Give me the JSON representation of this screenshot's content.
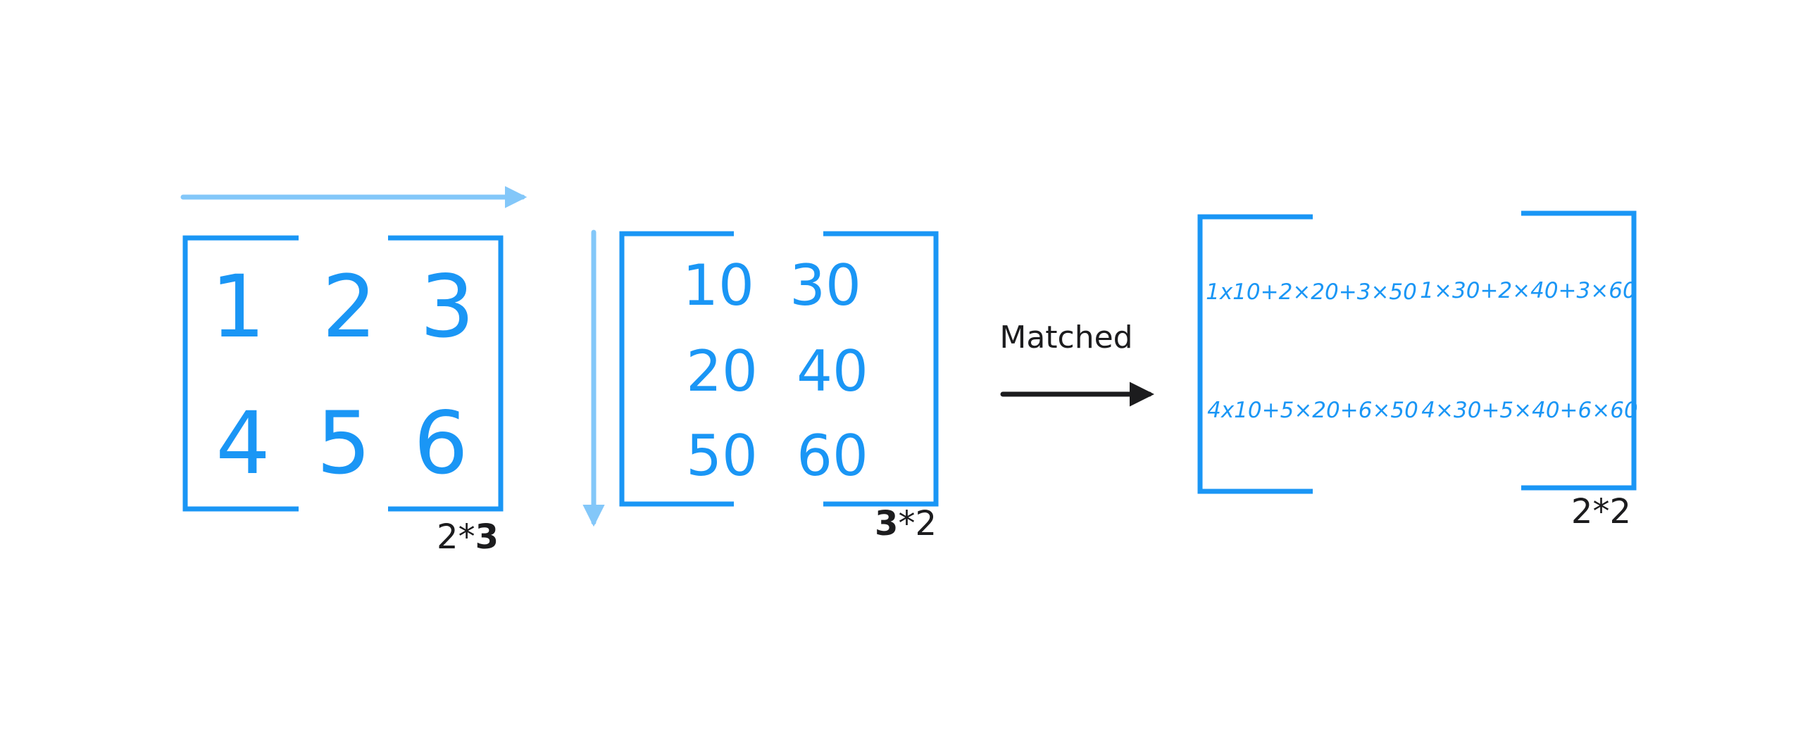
{
  "colors": {
    "bracket": "#1a96f5",
    "number": "#1a96f5",
    "guide_arrow": "#83c7f9",
    "arrow": "#1c1c1e",
    "text": "#1c1c1e"
  },
  "matrix_a": {
    "cells": [
      "1",
      "2",
      "3",
      "4",
      "5",
      "6"
    ],
    "dim_rows": "2",
    "dim_sep": "*",
    "dim_cols": "3"
  },
  "matrix_b": {
    "cells": [
      "10",
      "30",
      "20",
      "40",
      "50",
      "60"
    ],
    "dim_rows": "3",
    "dim_sep": "*",
    "dim_cols": "2"
  },
  "matched_label": "Matched",
  "result": {
    "cells": [
      "1x10+2×20+3×50",
      "1×30+2×40+3×60",
      "4x10+5×20+6×50",
      "4×30+5×40+6×60"
    ],
    "dim": "2*2"
  }
}
